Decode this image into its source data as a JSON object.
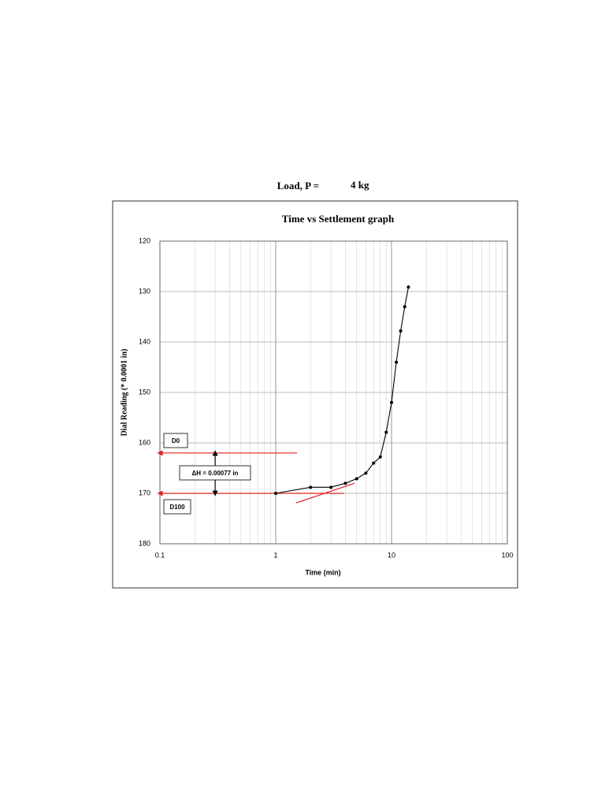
{
  "chart_data": {
    "type": "line",
    "load_label": "Load, P =",
    "load_value": "4 kg",
    "title": "Time vs Settlement graph",
    "x_label": "Time (min)",
    "y_label": "Dial Reading (* 0.0001 in)",
    "xscale": "log",
    "xlim": [
      0.1,
      100
    ],
    "xticks": [
      0.1,
      1,
      10,
      100
    ],
    "ylim": [
      120,
      180
    ],
    "y_reversed": true,
    "yticks": [
      120,
      130,
      140,
      150,
      160,
      170,
      180
    ],
    "grid": true,
    "minor_grid": true,
    "x": [
      1,
      2,
      3,
      4,
      5,
      6,
      7,
      8,
      9,
      10,
      11,
      12,
      13,
      14
    ],
    "series": [
      {
        "color": "#000000",
        "values": [
          170,
          168.8,
          168.8,
          168.0,
          167.1,
          166.0,
          164.0,
          162.8,
          157.9,
          152.0,
          144.0,
          137.8,
          133.0,
          129.1
        ]
      }
    ],
    "reference_lines": [
      {
        "x": [
          0.1,
          1.53
        ],
        "y": [
          162,
          162
        ],
        "color": "#e02020",
        "arrow": "start"
      },
      {
        "x": [
          0.1,
          3.9
        ],
        "y": [
          170,
          170
        ],
        "color": "#e02020",
        "arrow": "start"
      },
      {
        "x": [
          1.5,
          4.8
        ],
        "y": [
          171.9,
          168.0
        ],
        "color": "#e02020",
        "arrow": "none"
      },
      {
        "x": [
          0.3,
          0.3
        ],
        "y": [
          162,
          170
        ],
        "color": "#000000",
        "arrow": "both"
      }
    ],
    "annotations": [
      "D0",
      "ΔH = 0.00077 in",
      "D100"
    ]
  }
}
